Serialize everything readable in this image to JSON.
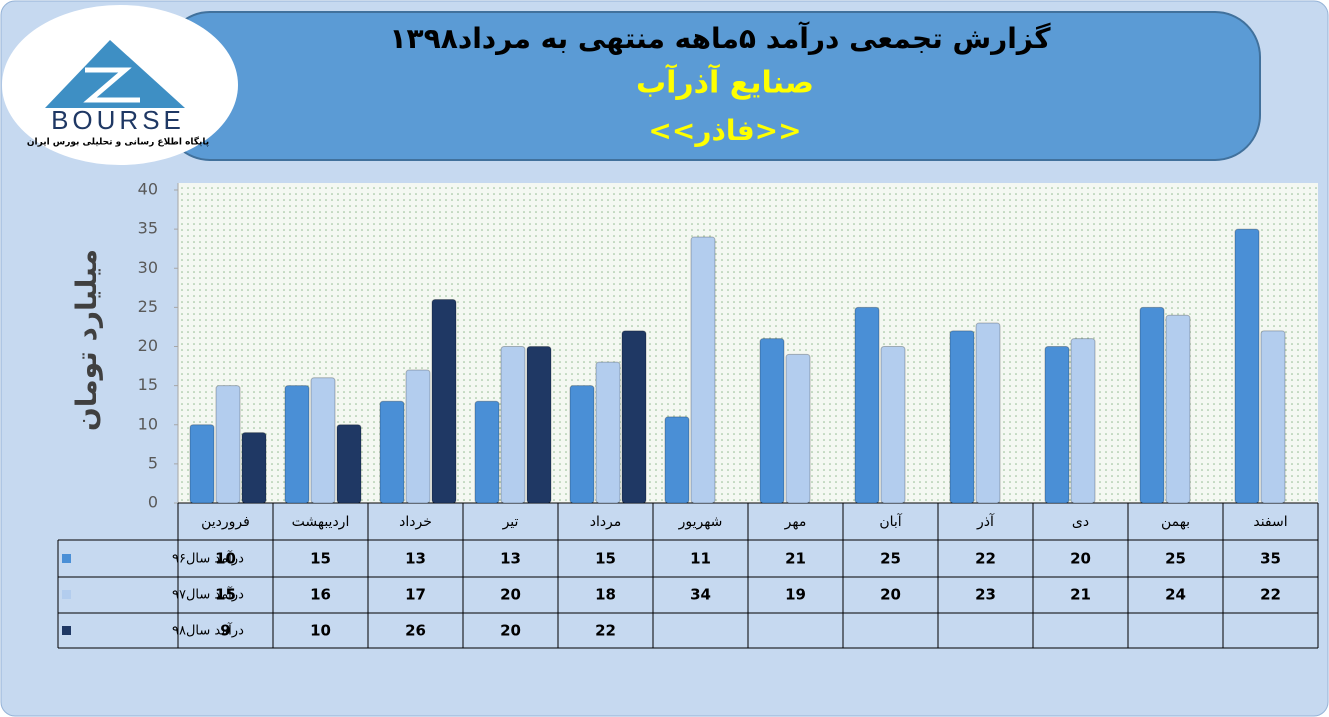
{
  "logo": {
    "name": "BOURSE",
    "tagline": "پایگاه اطلاع رسانی و تحلیلی بورس ایران"
  },
  "chart_data": {
    "type": "bar",
    "title": "گزارش تجمعی درآمد ۵ماهه منتهی به مرداد۱۳۹۸",
    "subtitle": "صنایع آذرآب",
    "symbol": "<<فاذر>>",
    "y_label": "میلیارد تومان",
    "categories": [
      "فروردین",
      "اردیبهشت",
      "خرداد",
      "تیر",
      "مرداد",
      "شهریور",
      "مهر",
      "آبان",
      "آذر",
      "دی",
      "بهمن",
      "اسفند"
    ],
    "series": [
      {
        "name": "درآمد سال۹۶",
        "color": "#4a8fd6",
        "values": [
          10,
          15,
          13,
          13,
          15,
          11,
          21,
          25,
          22,
          20,
          25,
          35
        ]
      },
      {
        "name": "درآمد سال۹۷",
        "color": "#b3cdee",
        "values": [
          15,
          16,
          17,
          20,
          18,
          34,
          19,
          20,
          23,
          21,
          24,
          22
        ]
      },
      {
        "name": "درآمد سال۹۸",
        "color": "#1f3864",
        "values": [
          9,
          10,
          26,
          20,
          22,
          null,
          null,
          null,
          null,
          null,
          null,
          null
        ]
      }
    ],
    "ylim": [
      0,
      40
    ],
    "yticks": [
      0,
      5,
      10,
      15,
      20,
      25,
      30,
      35,
      40
    ],
    "grid": false
  }
}
